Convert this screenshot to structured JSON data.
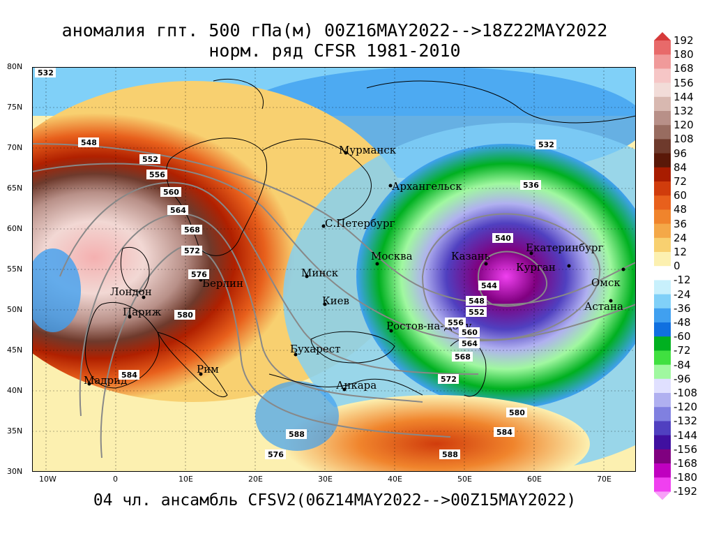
{
  "title_line1": "аномалия гпт. 500 гПа(м) 00Z16MAY2022-->18Z22MAY2022",
  "title_line2": "норм. ряд CFSR 1981-2010",
  "footer": "04 чл. ансамбль CFSV2(06Z14MAY2022-->00Z15MAY2022)",
  "lat_labels": [
    "80N",
    "75N",
    "70N",
    "65N",
    "60N",
    "55N",
    "50N",
    "45N",
    "40N",
    "35N",
    "30N"
  ],
  "lon_labels": [
    "10W",
    "0",
    "10E",
    "20E",
    "30E",
    "40E",
    "50E",
    "60E",
    "70E"
  ],
  "colorbar": {
    "labels": [
      "192",
      "180",
      "168",
      "156",
      "144",
      "132",
      "120",
      "108",
      "96",
      "84",
      "72",
      "60",
      "48",
      "36",
      "24",
      "12",
      "0",
      "-12",
      "-24",
      "-36",
      "-48",
      "-60",
      "-72",
      "-84",
      "-96",
      "-108",
      "-120",
      "-132",
      "-144",
      "-156",
      "-168",
      "-180",
      "-192"
    ],
    "colors": [
      "#d63a3a",
      "#e86a6a",
      "#f09a9a",
      "#f6c6c6",
      "#f2dcd8",
      "#d8b8b0",
      "#b89088",
      "#986c60",
      "#6e3a2c",
      "#5a1808",
      "#a81c00",
      "#d03c0c",
      "#e8601c",
      "#f0842c",
      "#f4a848",
      "#f8d070",
      "#fcf0b0",
      "#ffffff",
      "#c8f0fc",
      "#80d0f8",
      "#40a0f0",
      "#1070e0",
      "#00b020",
      "#40e040",
      "#a0f8a0",
      "#e0e0ff",
      "#b0b0f0",
      "#8080e0",
      "#5040c0",
      "#4010a0",
      "#800080",
      "#c000c0",
      "#f040f0",
      "#f8a0f8"
    ]
  },
  "cities": [
    {
      "name": "Мурманск"
    },
    {
      "name": "Архангельск"
    },
    {
      "name": "С.Петербург"
    },
    {
      "name": "Москва"
    },
    {
      "name": "Казань"
    },
    {
      "name": "Екатеринбург"
    },
    {
      "name": "Курган"
    },
    {
      "name": "Омск"
    },
    {
      "name": "Астана"
    },
    {
      "name": "Минск"
    },
    {
      "name": "Киев"
    },
    {
      "name": "Ростов-на-Дону"
    },
    {
      "name": "Бухарест"
    },
    {
      "name": "Анкара"
    },
    {
      "name": "Лондон"
    },
    {
      "name": "Париж"
    },
    {
      "name": "Берлин"
    },
    {
      "name": "Рим"
    },
    {
      "name": "Мадрид"
    }
  ],
  "contour_labels": [
    "532",
    "548",
    "552",
    "556",
    "560",
    "564",
    "568",
    "572",
    "576",
    "580",
    "584",
    "588",
    "532",
    "536",
    "540",
    "544",
    "548",
    "552",
    "556",
    "560",
    "564",
    "568",
    "572",
    "576",
    "580",
    "584",
    "588"
  ]
}
